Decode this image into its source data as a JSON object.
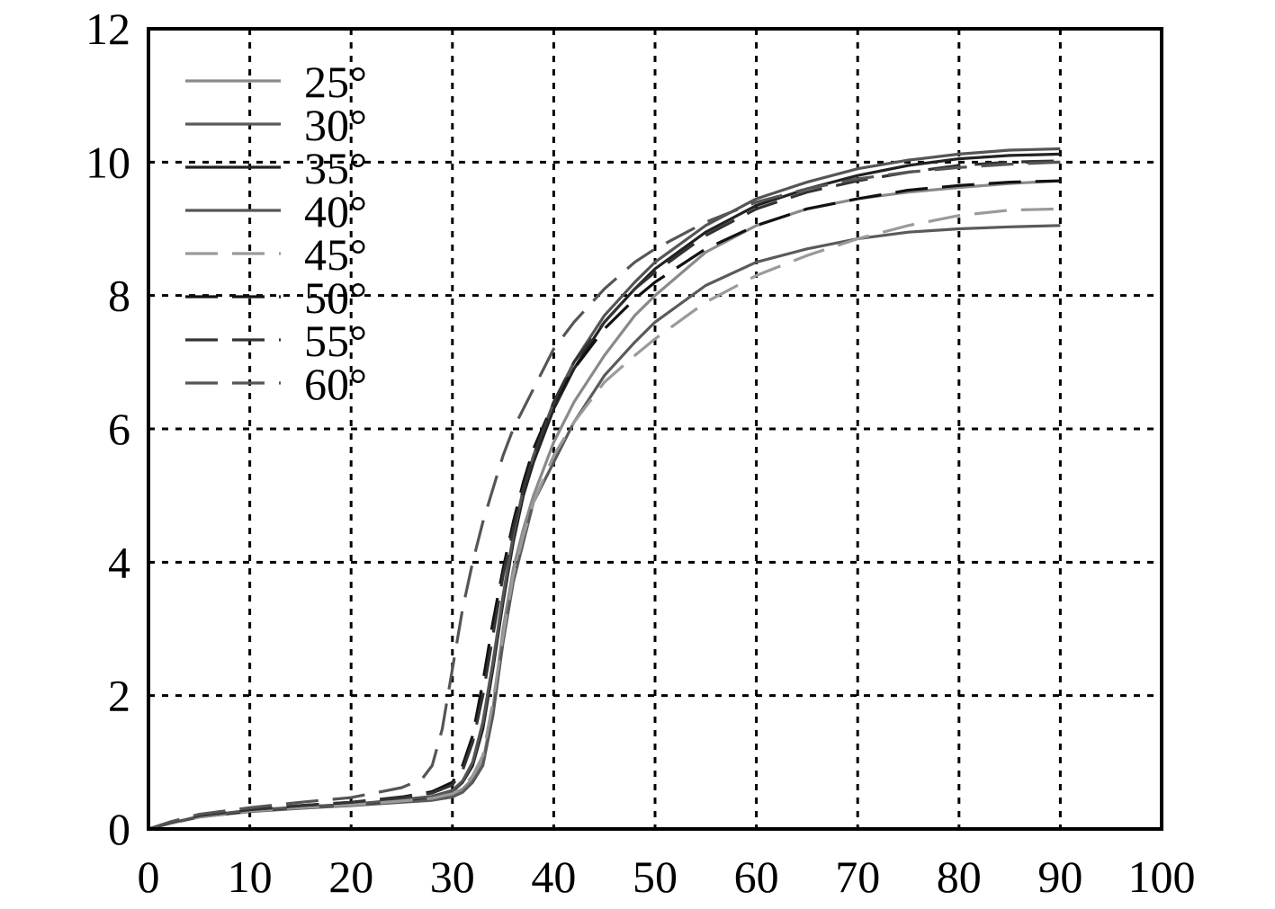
{
  "chart_data": {
    "type": "line",
    "title": "",
    "xlabel": "",
    "ylabel": "",
    "xlim": [
      0,
      100
    ],
    "ylim": [
      0,
      12
    ],
    "xticks": [
      "0",
      "10",
      "20",
      "30",
      "40",
      "50",
      "60",
      "70",
      "80",
      "90",
      "100"
    ],
    "yticks": [
      "0",
      "2",
      "4",
      "6",
      "8",
      "10",
      "12"
    ],
    "grid": true,
    "legend_position": "top-left",
    "series": [
      {
        "name": "25°",
        "color": "#8a8a8a",
        "dash": "solid",
        "x": [
          0,
          2,
          5,
          10,
          15,
          20,
          25,
          28,
          30,
          31,
          32,
          33,
          34,
          35,
          36,
          37,
          38,
          40,
          42,
          45,
          48,
          50,
          55,
          60,
          65,
          70,
          75,
          80,
          85,
          90
        ],
        "y": [
          0,
          0.08,
          0.18,
          0.27,
          0.32,
          0.36,
          0.42,
          0.46,
          0.52,
          0.6,
          0.75,
          1.0,
          1.8,
          3.0,
          3.9,
          4.5,
          5.0,
          5.8,
          6.4,
          7.1,
          7.7,
          8.0,
          8.65,
          9.05,
          9.3,
          9.45,
          9.55,
          9.62,
          9.68,
          9.72
        ]
      },
      {
        "name": "30°",
        "color": "#5a5a5a",
        "dash": "solid",
        "x": [
          0,
          2,
          5,
          10,
          15,
          20,
          25,
          28,
          30,
          31,
          32,
          33,
          34,
          35,
          36,
          37,
          38,
          40,
          42,
          45,
          48,
          50,
          55,
          60,
          65,
          70,
          75,
          80,
          85,
          90
        ],
        "y": [
          0,
          0.08,
          0.18,
          0.26,
          0.31,
          0.35,
          0.4,
          0.43,
          0.48,
          0.55,
          0.7,
          0.95,
          1.7,
          2.8,
          3.7,
          4.3,
          4.9,
          5.5,
          6.1,
          6.8,
          7.3,
          7.6,
          8.15,
          8.5,
          8.7,
          8.85,
          8.95,
          9.0,
          9.03,
          9.05
        ]
      },
      {
        "name": "35°",
        "color": "#222222",
        "dash": "solid",
        "x": [
          0,
          2,
          5,
          10,
          15,
          20,
          25,
          28,
          30,
          31,
          32,
          33,
          34,
          35,
          36,
          37,
          38,
          40,
          42,
          45,
          48,
          50,
          55,
          60,
          65,
          70,
          75,
          80,
          85,
          90
        ],
        "y": [
          0,
          0.08,
          0.18,
          0.27,
          0.33,
          0.37,
          0.43,
          0.48,
          0.56,
          0.7,
          0.95,
          1.5,
          2.4,
          3.4,
          4.3,
          5.0,
          5.5,
          6.3,
          6.9,
          7.6,
          8.1,
          8.4,
          8.95,
          9.35,
          9.6,
          9.8,
          9.95,
          10.05,
          10.1,
          10.12
        ]
      },
      {
        "name": "40°",
        "color": "#555555",
        "dash": "solid",
        "x": [
          0,
          2,
          5,
          10,
          15,
          20,
          25,
          28,
          30,
          31,
          32,
          33,
          34,
          35,
          36,
          37,
          38,
          40,
          42,
          45,
          48,
          50,
          55,
          60,
          65,
          70,
          75,
          80,
          85,
          90
        ],
        "y": [
          0,
          0.08,
          0.19,
          0.28,
          0.33,
          0.37,
          0.44,
          0.49,
          0.58,
          0.72,
          1.0,
          1.6,
          2.5,
          3.5,
          4.4,
          5.1,
          5.6,
          6.4,
          7.0,
          7.7,
          8.2,
          8.5,
          9.05,
          9.45,
          9.7,
          9.9,
          10.03,
          10.12,
          10.18,
          10.2
        ]
      },
      {
        "name": "45°",
        "color": "#9a9a9a",
        "dash": "dashed",
        "x": [
          0,
          2,
          5,
          10,
          15,
          20,
          25,
          28,
          30,
          31,
          32,
          33,
          34,
          35,
          36,
          37,
          38,
          40,
          42,
          45,
          48,
          50,
          55,
          60,
          65,
          70,
          75,
          80,
          85,
          90
        ],
        "y": [
          0,
          0.08,
          0.18,
          0.27,
          0.32,
          0.36,
          0.42,
          0.46,
          0.53,
          0.62,
          0.8,
          1.1,
          1.9,
          2.9,
          3.8,
          4.4,
          4.9,
          5.6,
          6.1,
          6.7,
          7.1,
          7.35,
          7.9,
          8.3,
          8.6,
          8.85,
          9.05,
          9.2,
          9.28,
          9.3
        ]
      },
      {
        "name": "50°",
        "color": "#111111",
        "dash": "dashed",
        "x": [
          0,
          2,
          5,
          10,
          15,
          20,
          25,
          28,
          30,
          31,
          32,
          33,
          34,
          35,
          36,
          37,
          38,
          40,
          42,
          45,
          48,
          50,
          55,
          60,
          65,
          70,
          75,
          80,
          85,
          90
        ],
        "y": [
          0,
          0.09,
          0.2,
          0.29,
          0.35,
          0.4,
          0.48,
          0.56,
          0.7,
          0.95,
          1.4,
          2.2,
          3.1,
          3.9,
          4.6,
          5.2,
          5.7,
          6.4,
          6.9,
          7.5,
          7.95,
          8.2,
          8.7,
          9.05,
          9.3,
          9.45,
          9.58,
          9.65,
          9.7,
          9.72
        ]
      },
      {
        "name": "55°",
        "color": "#333333",
        "dash": "dashed",
        "x": [
          0,
          2,
          5,
          10,
          15,
          20,
          25,
          28,
          30,
          31,
          32,
          33,
          34,
          35,
          36,
          37,
          38,
          40,
          42,
          45,
          48,
          50,
          55,
          60,
          65,
          70,
          75,
          80,
          85,
          90
        ],
        "y": [
          0,
          0.09,
          0.2,
          0.29,
          0.35,
          0.4,
          0.47,
          0.54,
          0.66,
          0.88,
          1.3,
          2.0,
          2.9,
          3.8,
          4.5,
          5.1,
          5.6,
          6.4,
          7.0,
          7.6,
          8.1,
          8.35,
          8.9,
          9.3,
          9.55,
          9.72,
          9.85,
          9.95,
          10.0,
          10.02
        ]
      },
      {
        "name": "60°",
        "color": "#555555",
        "dash": "dashed",
        "x": [
          0,
          2,
          5,
          10,
          15,
          20,
          25,
          27,
          28,
          29,
          30,
          31,
          32,
          33,
          34,
          35,
          36,
          38,
          40,
          42,
          45,
          48,
          50,
          55,
          60,
          65,
          70,
          75,
          80,
          85,
          90
        ],
        "y": [
          0,
          0.1,
          0.22,
          0.32,
          0.4,
          0.47,
          0.62,
          0.75,
          0.95,
          1.5,
          2.4,
          3.3,
          4.0,
          4.6,
          5.1,
          5.6,
          6.0,
          6.6,
          7.2,
          7.6,
          8.1,
          8.5,
          8.7,
          9.1,
          9.4,
          9.6,
          9.75,
          9.85,
          9.92,
          9.97,
          10.0
        ]
      }
    ]
  }
}
